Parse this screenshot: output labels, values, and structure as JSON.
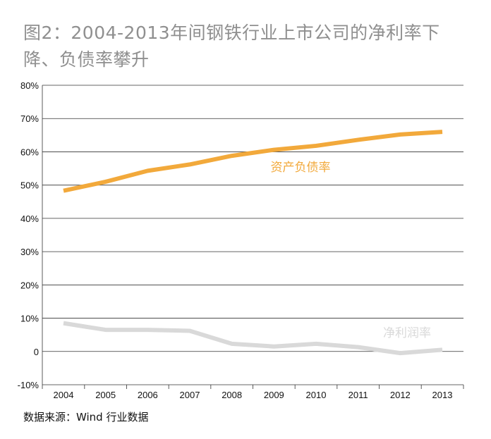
{
  "title": "图2：2004-2013年间钢铁行业上市公司的净利率下降、负债率攀升",
  "source": "数据来源：Wind 行业数据",
  "colors": {
    "debt": "#f2a93b",
    "profit": "#d9d9d9",
    "grid": "#333333",
    "title": "#8f8f8f"
  },
  "chart_data": {
    "type": "line",
    "title": "图2：2004-2013年间钢铁行业上市公司的净利率下降、负债率攀升",
    "xlabel": "",
    "ylabel": "",
    "categories": [
      "2004",
      "2005",
      "2006",
      "2007",
      "2008",
      "2009",
      "2010",
      "2011",
      "2012",
      "2013"
    ],
    "ylim": [
      -10,
      80
    ],
    "yticks": [
      80,
      70,
      60,
      50,
      40,
      30,
      20,
      10,
      0,
      -10
    ],
    "ytick_labels": [
      "80%",
      "70%",
      "60%",
      "50%",
      "40%",
      "30%",
      "20%",
      "10%",
      "0",
      "-10%"
    ],
    "grid": true,
    "series": [
      {
        "name": "资产负债率",
        "color": "#f2a93b",
        "values": [
          48.3,
          51.0,
          54.3,
          56.2,
          58.8,
          60.6,
          61.8,
          63.6,
          65.2,
          66.0
        ]
      },
      {
        "name": "净利润率",
        "color": "#d9d9d9",
        "values": [
          8.5,
          6.5,
          6.5,
          6.2,
          2.3,
          1.5,
          2.3,
          1.3,
          -0.5,
          0.5
        ]
      }
    ]
  }
}
